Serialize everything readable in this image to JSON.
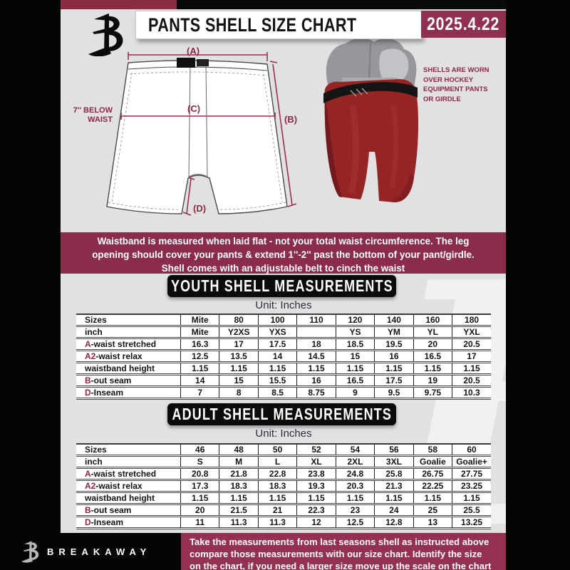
{
  "colors": {
    "background": "#e1e1e3",
    "frame_black": "#040404",
    "maroon_banner": "#8a2c4a",
    "maroon_footer": "#943054",
    "maroon_datebox": "#8e3150",
    "maroon_text": "#8e2742",
    "shell_red": "#952525",
    "table_bg": "#ffffff"
  },
  "header": {
    "title": "PANTS SHELL SIZE CHART",
    "date": "2025.4.22"
  },
  "diagram": {
    "label_a": "(A)",
    "label_b": "(B)",
    "label_c": "(C)",
    "label_d": "(D)",
    "waist_note_line1": "7'' BELOW",
    "waist_note_line2": "WAIST",
    "side_note": [
      "SHELLS ARE WORN",
      "OVER HOCKEY",
      "EQUIPMENT PANTS",
      "OR GIRDLE"
    ]
  },
  "banner": {
    "lines": [
      "Waistband is measured when laid flat - not your total waist circumference. The leg",
      "opening should cover your pants & extend 1''-2'' past the bottom of your pant/girdle.",
      "Shell comes with an adjustable belt to cinch the waist"
    ]
  },
  "youth": {
    "heading": "YOUTH SHELL MEASUREMENTS",
    "unit": "Unit: Inches"
  },
  "adult": {
    "heading": "ADULT SHELL MEASUREMENTS",
    "unit": "Unit: Inches"
  },
  "youth_table": {
    "columns": [
      "Sizes",
      "Mite",
      "80",
      "100",
      "110",
      "120",
      "140",
      "160",
      "180"
    ],
    "rows": [
      {
        "prefix": "",
        "label": "inch",
        "values": [
          "Mite",
          "Y2XS",
          "YXS",
          "",
          "YS",
          "YM",
          "YL",
          "YXL"
        ]
      },
      {
        "prefix": "A",
        "label": "-waist stretched",
        "values": [
          "16.3",
          "17",
          "17.5",
          "18",
          "18.5",
          "19.5",
          "20",
          "20.5"
        ]
      },
      {
        "prefix": "A2",
        "label": "-waist relax",
        "values": [
          "12.5",
          "13.5",
          "14",
          "14.5",
          "15",
          "16",
          "16.5",
          "17"
        ]
      },
      {
        "prefix": "",
        "label": "waistband height",
        "values": [
          "1.15",
          "1.15",
          "1.15",
          "1.15",
          "1.15",
          "1.15",
          "1.15",
          "1.15"
        ]
      },
      {
        "prefix": "B",
        "label": "-out seam",
        "values": [
          "14",
          "15",
          "15.5",
          "16",
          "16.5",
          "17.5",
          "19",
          "20.5"
        ]
      },
      {
        "prefix": "D",
        "label": "-Inseam",
        "values": [
          "7",
          "8",
          "8.5",
          "8.75",
          "9",
          "9.5",
          "9.75",
          "10.3"
        ]
      }
    ]
  },
  "adult_table": {
    "columns": [
      "Sizes",
      "46",
      "48",
      "50",
      "52",
      "54",
      "56",
      "58",
      "60"
    ],
    "rows": [
      {
        "prefix": "",
        "label": "inch",
        "values": [
          "S",
          "M",
          "L",
          "XL",
          "2XL",
          "3XL",
          "Goalie",
          "Goalie+"
        ]
      },
      {
        "prefix": "A",
        "label": "-waist stretched",
        "values": [
          "20.8",
          "21.8",
          "22.8",
          "23.8",
          "24.8",
          "25.8",
          "26.75",
          "27.75"
        ]
      },
      {
        "prefix": "A2",
        "label": "-waist relax",
        "values": [
          "17.3",
          "18.3",
          "18.3",
          "19.3",
          "20.3",
          "21.3",
          "22.25",
          "23.25"
        ]
      },
      {
        "prefix": "",
        "label": "waistband height",
        "values": [
          "1.15",
          "1.15",
          "1.15",
          "1.15",
          "1.15",
          "1.15",
          "1.15",
          "1.15"
        ]
      },
      {
        "prefix": "B",
        "label": "-out seam",
        "values": [
          "20",
          "21.5",
          "21",
          "22.3",
          "23",
          "24",
          "25",
          "25.5"
        ]
      },
      {
        "prefix": "D",
        "label": "-Inseam",
        "values": [
          "11",
          "11.3",
          "11.3",
          "12",
          "12.5",
          "12.8",
          "13",
          "13.25"
        ]
      }
    ]
  },
  "footer": {
    "brand": "BREAKAWAY",
    "lines": [
      "Take the measurements from last seasons shell as instructed above",
      "compare those measurements  with our size chart. Identify the size",
      "on the chart, if you need a larger size move up the scale on the chart"
    ]
  }
}
